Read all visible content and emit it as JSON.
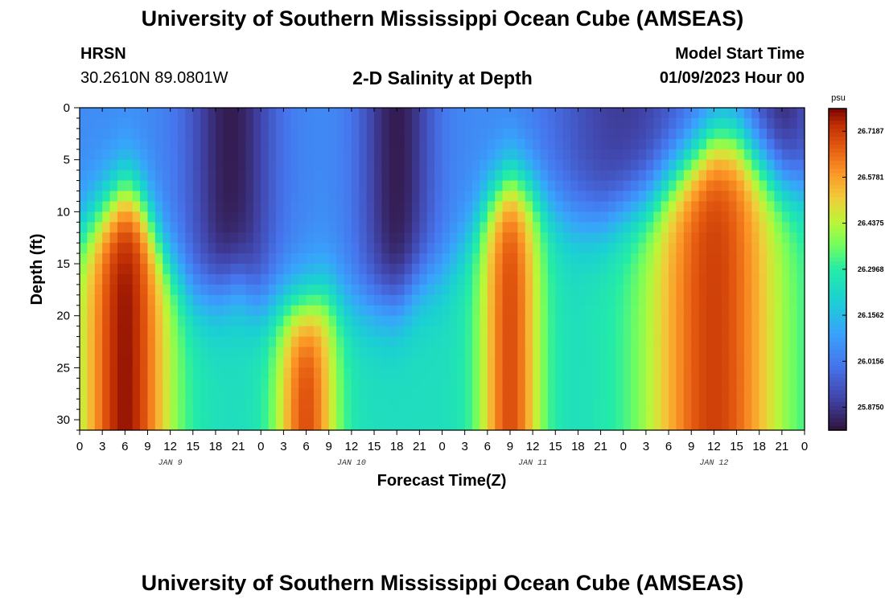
{
  "header": {
    "title": "University of Southern Mississippi Ocean Cube (AMSEAS)",
    "station": "HRSN",
    "coords": "30.2610N  89.0801W",
    "subtitle": "2-D Salinity at Depth",
    "model_label": "Model Start Time",
    "model_time": "01/09/2023 Hour 00"
  },
  "footer": {
    "title": "University of Southern Mississippi Ocean Cube (AMSEAS)"
  },
  "colors": {
    "frame": "#000000",
    "background": "#ffffff"
  },
  "chart_data": {
    "type": "heatmap",
    "title": "2-D Salinity at Depth",
    "xlabel": "Forecast Time(Z)",
    "ylabel": "Depth (ft)",
    "x_tick_labels": [
      "0",
      "3",
      "6",
      "9",
      "12",
      "15",
      "18",
      "21",
      "0",
      "3",
      "6",
      "9",
      "12",
      "15",
      "18",
      "21",
      "0",
      "3",
      "6",
      "9",
      "12",
      "15",
      "18",
      "21",
      "0",
      "3",
      "6",
      "9",
      "12",
      "15",
      "18",
      "21",
      "0"
    ],
    "x_range_hours": [
      0,
      96
    ],
    "day_labels": [
      {
        "label": "JAN 9",
        "hour": 12
      },
      {
        "label": "JAN 10",
        "hour": 36
      },
      {
        "label": "JAN 11",
        "hour": 60
      },
      {
        "label": "JAN 12",
        "hour": 84
      }
    ],
    "y_ticks": [
      "0",
      "5",
      "10",
      "15",
      "20",
      "25",
      "30"
    ],
    "y_range_ft": [
      0,
      31
    ],
    "colorbar": {
      "unit": "psu",
      "range": [
        25.805,
        26.788
      ],
      "labels": [
        "26.7187",
        "26.5781",
        "26.4375",
        "26.2968",
        "26.1562",
        "26.0156",
        "25.8750"
      ]
    },
    "surface_tide_series": {
      "description": "Approximate interface depth (ft) between fresher surface water and saltier bottom water over forecast hours",
      "hours": [
        0,
        3,
        6,
        8,
        10,
        12,
        15,
        18,
        21,
        24,
        27,
        30,
        33,
        36,
        40,
        42,
        45,
        48,
        51,
        54,
        57,
        60,
        63,
        66,
        69,
        72,
        75,
        78,
        81,
        84,
        87,
        90,
        93,
        96
      ],
      "interface_ft": [
        12,
        10,
        8,
        9,
        12,
        15,
        18,
        18,
        17,
        19,
        19,
        19,
        18,
        19,
        19,
        19,
        17,
        16,
        13,
        9,
        7,
        8,
        10,
        11,
        11,
        10,
        9,
        7,
        5,
        3,
        3,
        5,
        7,
        8
      ]
    }
  }
}
